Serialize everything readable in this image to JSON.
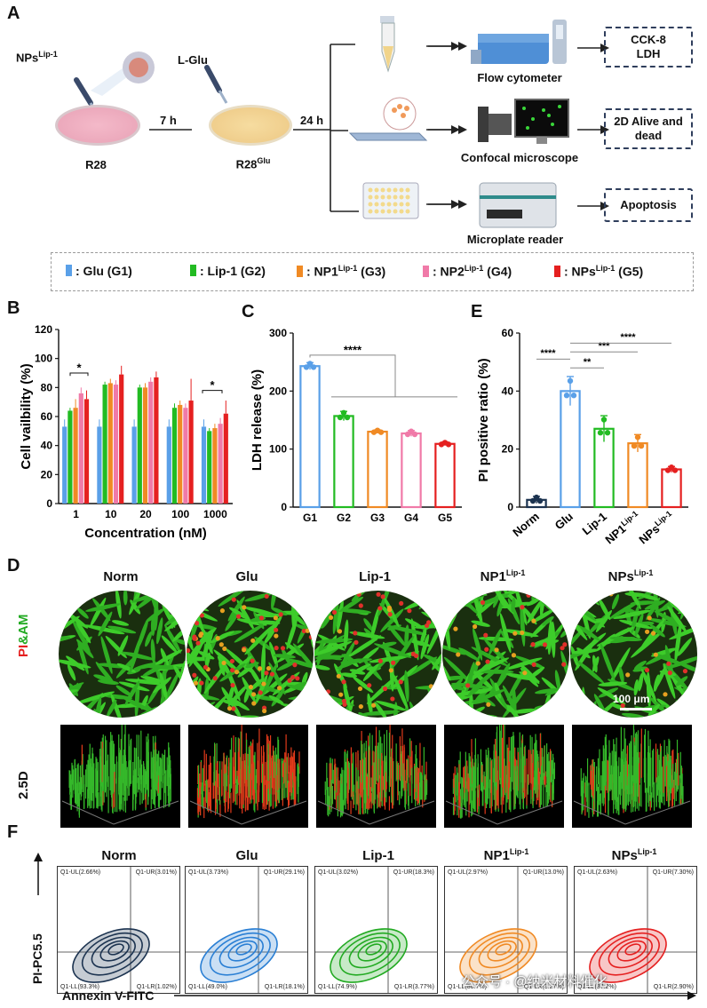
{
  "panels": {
    "A": "A",
    "B": "B",
    "C": "C",
    "D": "D",
    "E": "E",
    "F": "F"
  },
  "panelA": {
    "nps_label": "NPs",
    "nps_sup": "Lip-1",
    "lglu_label": "L-Glu",
    "r28_label": "R28",
    "r28glu_label": "R28",
    "r28glu_sup": "Glu",
    "time1": "7 h",
    "time2": "24 h",
    "flow_cytometer": "Flow cytometer",
    "confocal": "Confocal microscope",
    "microplate": "Microplate reader",
    "out1_line1": "CCK-8",
    "out1_line2": "LDH",
    "out2_line1": "2D Alive and",
    "out2_line2": "dead",
    "out3": "Apoptosis"
  },
  "legend": [
    {
      "text": ": Glu (G1)",
      "sup": "",
      "tail": "",
      "color": "#5aa0e8"
    },
    {
      "text": ": Lip-1 (G2)",
      "sup": "",
      "tail": "",
      "color": "#22bb22"
    },
    {
      "text": ": NP1",
      "sup": "Lip-1",
      "tail": " (G3)",
      "color": "#f08a24"
    },
    {
      "text": ": NP2",
      "sup": "Lip-1",
      "tail": " (G4)",
      "color": "#f07aa8"
    },
    {
      "text": ": NPs",
      "sup": "Lip-1",
      "tail": " (G5)",
      "color": "#e52020"
    }
  ],
  "chart_data": [
    {
      "id": "B",
      "type": "bar",
      "title": "",
      "xlabel": "Concentration (nM)",
      "ylabel": "Cell vailbility (%)",
      "ylim": [
        0,
        120
      ],
      "yticks": [
        "0",
        "20",
        "40",
        "60",
        "80",
        "100",
        "120"
      ],
      "categories": [
        "1",
        "10",
        "20",
        "100",
        "1000"
      ],
      "series": [
        {
          "name": "Glu (G1)",
          "color": "#5aa0e8",
          "values": [
            53,
            53,
            53,
            53,
            53
          ]
        },
        {
          "name": "Lip-1 (G2)",
          "color": "#22bb22",
          "values": [
            64,
            82,
            80,
            66,
            50
          ]
        },
        {
          "name": "NP1 (G3)",
          "color": "#f08a24",
          "values": [
            66,
            83,
            80,
            68,
            52
          ]
        },
        {
          "name": "NP2 (G4)",
          "color": "#f07aa8",
          "values": [
            76,
            82,
            84,
            66,
            55
          ]
        },
        {
          "name": "NPs (G5)",
          "color": "#e52020",
          "values": [
            72,
            89,
            87,
            71,
            62
          ]
        }
      ],
      "errors": [
        [
          5,
          5,
          5,
          5,
          5
        ],
        [
          2,
          2,
          2,
          3,
          2
        ],
        [
          6,
          3,
          3,
          3,
          3
        ],
        [
          4,
          3,
          3,
          3,
          4
        ],
        [
          6,
          6,
          4,
          15,
          9
        ]
      ],
      "sig": [
        "*",
        "*"
      ]
    },
    {
      "id": "C",
      "type": "bar",
      "title": "",
      "xlabel": "",
      "ylabel": "LDH release (%)",
      "ylim": [
        0,
        300
      ],
      "yticks": [
        "0",
        "100",
        "200",
        "300"
      ],
      "categories": [
        "G1",
        "G2",
        "G3",
        "G4",
        "G5"
      ],
      "colors": [
        "#5aa0e8",
        "#22bb22",
        "#f08a24",
        "#f07aa8",
        "#e52020"
      ],
      "values": [
        243,
        157,
        130,
        127,
        109
      ],
      "errors": [
        6,
        8,
        3,
        5,
        3
      ],
      "sig": "****"
    },
    {
      "id": "E",
      "type": "bar",
      "title": "",
      "xlabel": "",
      "ylabel": "PI positive ratio (%)",
      "ylim": [
        0,
        60
      ],
      "yticks": [
        "0",
        "20",
        "40",
        "60"
      ],
      "categories": [
        "Norm",
        "Glu",
        "Lip-1",
        "NP1",
        "NPs"
      ],
      "category_sups": [
        "",
        "",
        "",
        "Lip-1",
        "Lip-1"
      ],
      "colors": [
        "#1c3350",
        "#5aa0e8",
        "#22bb22",
        "#f08a24",
        "#e52020"
      ],
      "values": [
        2.5,
        40,
        27,
        22,
        13
      ],
      "errors": [
        1.2,
        5,
        4.5,
        3,
        1
      ],
      "sig": [
        "****",
        "**",
        "***",
        "****"
      ]
    }
  ],
  "panelD": {
    "columns": [
      {
        "title": "Norm",
        "sup": ""
      },
      {
        "title": "Glu",
        "sup": ""
      },
      {
        "title": "Lip-1",
        "sup": ""
      },
      {
        "title": "NP1",
        "sup": "Lip-1"
      },
      {
        "title": "NPs",
        "sup": "Lip-1"
      }
    ],
    "row_label_pi": "PI",
    "row_label_amp": "&AM",
    "row_label_25d": "2.5D",
    "scale_bar": "100 μm"
  },
  "panelF": {
    "columns": [
      {
        "title": "Norm",
        "sup": "",
        "ul": "Q1-UL(2.66%)",
        "ur": "Q1-UR(3.01%)",
        "ll": "Q1-LL(93.3%)",
        "lr": "Q1-LR(1.02%)",
        "color": "#1c3350"
      },
      {
        "title": "Glu",
        "sup": "",
        "ul": "Q1-UL(3.73%)",
        "ur": "Q1-UR(29.1%)",
        "ll": "Q1-LL(49.0%)",
        "lr": "Q1-LR(18.1%)",
        "color": "#2a7fd4"
      },
      {
        "title": "Lip-1",
        "sup": "",
        "ul": "Q1-UL(3.02%)",
        "ur": "Q1-UR(18.3%)",
        "ll": "Q1-LL(74.9%)",
        "lr": "Q1-LR(3.77%)",
        "color": "#22aa22"
      },
      {
        "title": "NP1",
        "sup": "Lip-1",
        "ul": "Q1-UL(2.97%)",
        "ur": "Q1-UR(13.0%)",
        "ll": "Q1-LL(80.7%)",
        "lr": "Q1-LR(3.27%)",
        "color": "#f08a24"
      },
      {
        "title": "NPs",
        "sup": "Lip-1",
        "ul": "Q1-UL(2.63%)",
        "ur": "Q1-UR(7.30%)",
        "ll": "Q1-LL(87.2%)",
        "lr": "Q1-LR(2.90%)",
        "color": "#e52020"
      }
    ],
    "y_axis": "PI-PC5.5",
    "x_axis": "Annexin V-FITC",
    "watermark": "公众号 · @纳米材料催化"
  }
}
